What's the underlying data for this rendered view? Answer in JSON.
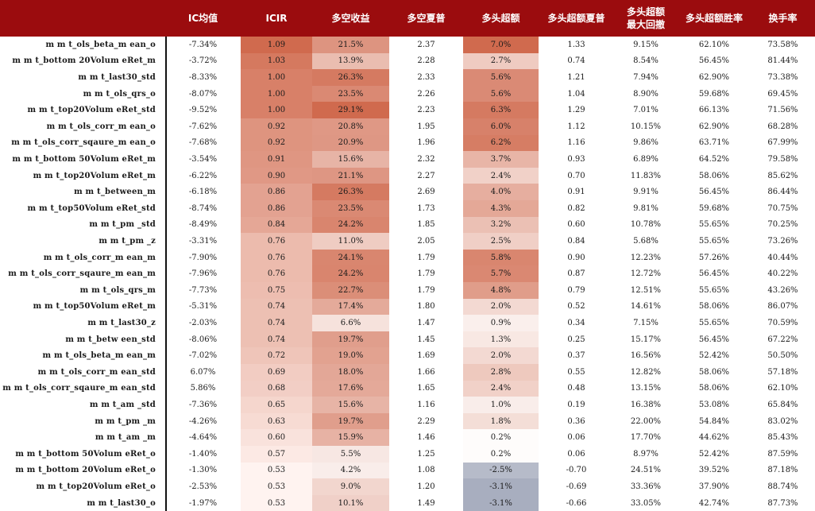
{
  "headers": [
    "IC均值",
    "ICIR",
    "多空收益",
    "多空夏普",
    "多头超额",
    "多头超额夏普",
    "多头超额\n最大回撤",
    "多头超额胜率",
    "换手率"
  ],
  "colors": {
    "header_bg": "#9b0c0e",
    "header_text": "#ffffff",
    "positive_strong": "#d06a4e",
    "negative_strong": "#a8aebf",
    "divider": "#111111"
  },
  "heat_scale": {
    "icir": [
      0.53,
      1.09
    ],
    "longshort": [
      -3,
      29.1
    ],
    "excess": [
      -3.1,
      7.0
    ]
  },
  "rows": [
    {
      "name": "m m t_ols_beta_m ean_o",
      "ic": "-7.34%",
      "icir": "1.09",
      "ls": "21.5%",
      "ls_sharpe": "2.37",
      "excess": "7.0%",
      "ex_sharpe": "1.33",
      "mdd": "9.15%",
      "win": "62.10%",
      "turnover": "73.58%"
    },
    {
      "name": "m m t_bottom 20Volum eRet_m",
      "ic": "-3.72%",
      "icir": "1.03",
      "ls": "13.9%",
      "ls_sharpe": "2.28",
      "excess": "2.7%",
      "ex_sharpe": "0.74",
      "mdd": "8.54%",
      "win": "56.45%",
      "turnover": "81.44%"
    },
    {
      "name": "m m t_last30_std",
      "ic": "-8.33%",
      "icir": "1.00",
      "ls": "26.3%",
      "ls_sharpe": "2.33",
      "excess": "5.6%",
      "ex_sharpe": "1.21",
      "mdd": "7.94%",
      "win": "62.90%",
      "turnover": "73.38%"
    },
    {
      "name": "m m t_ols_qrs_o",
      "ic": "-8.07%",
      "icir": "1.00",
      "ls": "23.5%",
      "ls_sharpe": "2.26",
      "excess": "5.6%",
      "ex_sharpe": "1.04",
      "mdd": "8.90%",
      "win": "59.68%",
      "turnover": "69.45%"
    },
    {
      "name": "m m t_top20Volum eRet_std",
      "ic": "-9.52%",
      "icir": "1.00",
      "ls": "29.1%",
      "ls_sharpe": "2.23",
      "excess": "6.3%",
      "ex_sharpe": "1.29",
      "mdd": "7.01%",
      "win": "66.13%",
      "turnover": "71.56%"
    },
    {
      "name": "m m t_ols_corr_m ean_o",
      "ic": "-7.62%",
      "icir": "0.92",
      "ls": "20.8%",
      "ls_sharpe": "1.95",
      "excess": "6.0%",
      "ex_sharpe": "1.12",
      "mdd": "10.15%",
      "win": "62.90%",
      "turnover": "68.28%"
    },
    {
      "name": "m m t_ols_corr_sqaure_m ean_o",
      "ic": "-7.68%",
      "icir": "0.92",
      "ls": "20.9%",
      "ls_sharpe": "1.96",
      "excess": "6.2%",
      "ex_sharpe": "1.16",
      "mdd": "9.86%",
      "win": "63.71%",
      "turnover": "67.99%"
    },
    {
      "name": "m m t_bottom 50Volum eRet_m",
      "ic": "-3.54%",
      "icir": "0.91",
      "ls": "15.6%",
      "ls_sharpe": "2.32",
      "excess": "3.7%",
      "ex_sharpe": "0.93",
      "mdd": "6.89%",
      "win": "64.52%",
      "turnover": "79.58%"
    },
    {
      "name": "m m t_top20Volum eRet_m",
      "ic": "-6.22%",
      "icir": "0.90",
      "ls": "21.1%",
      "ls_sharpe": "2.27",
      "excess": "2.4%",
      "ex_sharpe": "0.70",
      "mdd": "11.83%",
      "win": "58.06%",
      "turnover": "85.62%"
    },
    {
      "name": "m m t_between_m",
      "ic": "-6.18%",
      "icir": "0.86",
      "ls": "26.3%",
      "ls_sharpe": "2.69",
      "excess": "4.0%",
      "ex_sharpe": "0.91",
      "mdd": "9.91%",
      "win": "56.45%",
      "turnover": "86.44%"
    },
    {
      "name": "m m t_top50Volum eRet_std",
      "ic": "-8.74%",
      "icir": "0.86",
      "ls": "23.5%",
      "ls_sharpe": "1.73",
      "excess": "4.3%",
      "ex_sharpe": "0.82",
      "mdd": "9.81%",
      "win": "59.68%",
      "turnover": "70.75%"
    },
    {
      "name": "m m t_pm _std",
      "ic": "-8.49%",
      "icir": "0.84",
      "ls": "24.2%",
      "ls_sharpe": "1.85",
      "excess": "3.2%",
      "ex_sharpe": "0.60",
      "mdd": "10.78%",
      "win": "55.65%",
      "turnover": "70.25%"
    },
    {
      "name": "m m t_pm _z",
      "ic": "-3.31%",
      "icir": "0.76",
      "ls": "11.0%",
      "ls_sharpe": "2.05",
      "excess": "2.5%",
      "ex_sharpe": "0.84",
      "mdd": "5.68%",
      "win": "55.65%",
      "turnover": "73.26%"
    },
    {
      "name": "m m t_ols_corr_m ean_m",
      "ic": "-7.90%",
      "icir": "0.76",
      "ls": "24.1%",
      "ls_sharpe": "1.79",
      "excess": "5.8%",
      "ex_sharpe": "0.90",
      "mdd": "12.23%",
      "win": "57.26%",
      "turnover": "40.44%"
    },
    {
      "name": "m m t_ols_corr_sqaure_m ean_m",
      "ic": "-7.96%",
      "icir": "0.76",
      "ls": "24.2%",
      "ls_sharpe": "1.79",
      "excess": "5.7%",
      "ex_sharpe": "0.87",
      "mdd": "12.72%",
      "win": "56.45%",
      "turnover": "40.22%"
    },
    {
      "name": "m m t_ols_qrs_m",
      "ic": "-7.73%",
      "icir": "0.75",
      "ls": "22.7%",
      "ls_sharpe": "1.79",
      "excess": "4.8%",
      "ex_sharpe": "0.79",
      "mdd": "12.51%",
      "win": "55.65%",
      "turnover": "43.26%"
    },
    {
      "name": "m m t_top50Volum eRet_m",
      "ic": "-5.31%",
      "icir": "0.74",
      "ls": "17.4%",
      "ls_sharpe": "1.80",
      "excess": "2.0%",
      "ex_sharpe": "0.52",
      "mdd": "14.61%",
      "win": "58.06%",
      "turnover": "86.07%"
    },
    {
      "name": "m m t_last30_z",
      "ic": "-2.03%",
      "icir": "0.74",
      "ls": "6.6%",
      "ls_sharpe": "1.47",
      "excess": "0.9%",
      "ex_sharpe": "0.34",
      "mdd": "7.15%",
      "win": "55.65%",
      "turnover": "70.59%"
    },
    {
      "name": "m m t_betw een_std",
      "ic": "-8.06%",
      "icir": "0.74",
      "ls": "19.7%",
      "ls_sharpe": "1.45",
      "excess": "1.3%",
      "ex_sharpe": "0.25",
      "mdd": "15.17%",
      "win": "56.45%",
      "turnover": "67.22%"
    },
    {
      "name": "m m t_ols_beta_m ean_m",
      "ic": "-7.02%",
      "icir": "0.72",
      "ls": "19.0%",
      "ls_sharpe": "1.69",
      "excess": "2.0%",
      "ex_sharpe": "0.37",
      "mdd": "16.56%",
      "win": "52.42%",
      "turnover": "50.50%"
    },
    {
      "name": "m m t_ols_corr_m ean_std",
      "ic": "6.07%",
      "icir": "0.69",
      "ls": "18.0%",
      "ls_sharpe": "1.66",
      "excess": "2.8%",
      "ex_sharpe": "0.55",
      "mdd": "12.82%",
      "win": "58.06%",
      "turnover": "57.18%"
    },
    {
      "name": "m m t_ols_corr_sqaure_m ean_std",
      "ic": "5.86%",
      "icir": "0.68",
      "ls": "17.6%",
      "ls_sharpe": "1.65",
      "excess": "2.4%",
      "ex_sharpe": "0.48",
      "mdd": "13.15%",
      "win": "58.06%",
      "turnover": "62.10%"
    },
    {
      "name": "m m t_am _std",
      "ic": "-7.36%",
      "icir": "0.65",
      "ls": "15.6%",
      "ls_sharpe": "1.16",
      "excess": "1.0%",
      "ex_sharpe": "0.19",
      "mdd": "16.38%",
      "win": "53.08%",
      "turnover": "65.84%"
    },
    {
      "name": "m m t_pm _m",
      "ic": "-4.26%",
      "icir": "0.63",
      "ls": "19.7%",
      "ls_sharpe": "2.29",
      "excess": "1.8%",
      "ex_sharpe": "0.36",
      "mdd": "22.00%",
      "win": "54.84%",
      "turnover": "83.02%"
    },
    {
      "name": "m m t_am _m",
      "ic": "-4.64%",
      "icir": "0.60",
      "ls": "15.9%",
      "ls_sharpe": "1.46",
      "excess": "0.2%",
      "ex_sharpe": "0.06",
      "mdd": "17.70%",
      "win": "44.62%",
      "turnover": "85.43%"
    },
    {
      "name": "m m t_bottom 50Volum eRet_o",
      "ic": "-1.40%",
      "icir": "0.57",
      "ls": "5.5%",
      "ls_sharpe": "1.25",
      "excess": "0.2%",
      "ex_sharpe": "0.06",
      "mdd": "8.97%",
      "win": "52.42%",
      "turnover": "87.59%"
    },
    {
      "name": "m m t_bottom 20Volum eRet_o",
      "ic": "-1.30%",
      "icir": "0.53",
      "ls": "4.2%",
      "ls_sharpe": "1.08",
      "excess": "-2.5%",
      "ex_sharpe": "-0.70",
      "mdd": "24.51%",
      "win": "39.52%",
      "turnover": "87.18%"
    },
    {
      "name": "m m t_top20Volum eRet_o",
      "ic": "-2.53%",
      "icir": "0.53",
      "ls": "9.0%",
      "ls_sharpe": "1.20",
      "excess": "-3.1%",
      "ex_sharpe": "-0.69",
      "mdd": "33.36%",
      "win": "37.90%",
      "turnover": "88.74%"
    },
    {
      "name": "m m t_last30_o",
      "ic": "-1.97%",
      "icir": "0.53",
      "ls": "10.1%",
      "ls_sharpe": "1.49",
      "excess": "-3.1%",
      "ex_sharpe": "-0.66",
      "mdd": "33.05%",
      "win": "42.74%",
      "turnover": "87.73%"
    }
  ]
}
